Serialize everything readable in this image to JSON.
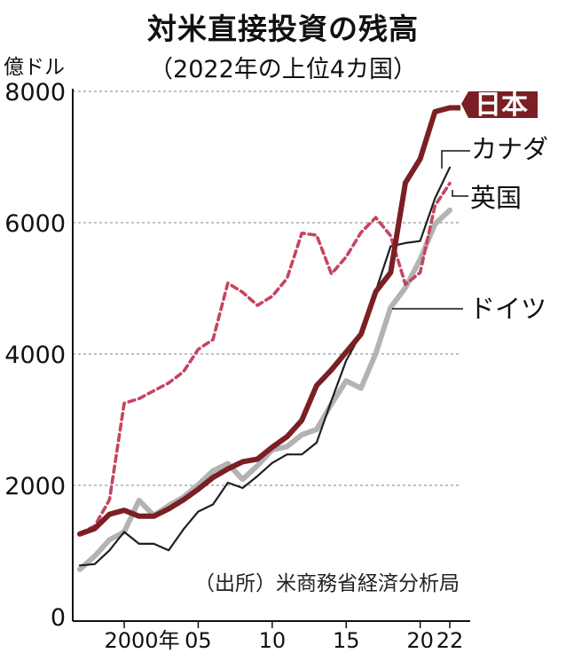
{
  "title": "対米直接投資の残高",
  "subtitle": "（2022年の上位4カ国）",
  "unit": "億ドル",
  "source": "（出所）米商務省経済分析局",
  "chart_data": {
    "type": "line",
    "xlabel": "",
    "ylabel": "億ドル",
    "ylim": [
      0,
      8000
    ],
    "xlim": [
      1997,
      2022
    ],
    "y_ticks": [
      0,
      2000,
      4000,
      6000,
      8000
    ],
    "y_tick_labels": [
      "0",
      "2000",
      "4000",
      "6000",
      "8000"
    ],
    "x_ticks": [
      2000,
      2005,
      2010,
      2015,
      2020,
      2022
    ],
    "x_tick_labels": [
      "2000年",
      "05",
      "10",
      "15",
      "20",
      "22"
    ],
    "grid": true,
    "x": [
      1997,
      1998,
      1999,
      2000,
      2001,
      2002,
      2003,
      2004,
      2005,
      2006,
      2007,
      2008,
      2009,
      2010,
      2011,
      2012,
      2013,
      2014,
      2015,
      2016,
      2017,
      2018,
      2019,
      2020,
      2021,
      2022
    ],
    "series": [
      {
        "name": "日本",
        "color": "#7a1f23",
        "style": "solid-thick",
        "values": [
          1260,
          1340,
          1560,
          1620,
          1530,
          1530,
          1640,
          1780,
          1940,
          2120,
          2250,
          2360,
          2400,
          2580,
          2740,
          2990,
          3520,
          3760,
          4030,
          4300,
          4950,
          5240,
          6610,
          6970,
          7690,
          7750
        ]
      },
      {
        "name": "カナダ",
        "color": "#1f1f1f",
        "style": "solid-thin",
        "values": [
          780,
          800,
          1010,
          1290,
          1110,
          1110,
          1010,
          1330,
          1600,
          1710,
          2040,
          1960,
          2140,
          2340,
          2470,
          2470,
          2650,
          3290,
          3900,
          4310,
          4960,
          5640,
          5690,
          5720,
          6370,
          6840
        ]
      },
      {
        "name": "英国",
        "color": "#c5455f",
        "style": "dashed",
        "values": [
          1270,
          1380,
          1780,
          3250,
          3320,
          3440,
          3560,
          3730,
          4070,
          4220,
          5080,
          4940,
          4740,
          4880,
          5150,
          5840,
          5810,
          5220,
          5480,
          5850,
          6080,
          5800,
          5060,
          5240,
          6260,
          6600
        ]
      },
      {
        "name": "ドイツ",
        "color": "#b3b3b3",
        "style": "solid-thick",
        "values": [
          720,
          920,
          1170,
          1290,
          1770,
          1540,
          1690,
          1820,
          2010,
          2220,
          2330,
          2090,
          2300,
          2540,
          2590,
          2770,
          2850,
          3240,
          3590,
          3480,
          4010,
          4710,
          5010,
          5440,
          5980,
          6190
        ]
      }
    ]
  }
}
